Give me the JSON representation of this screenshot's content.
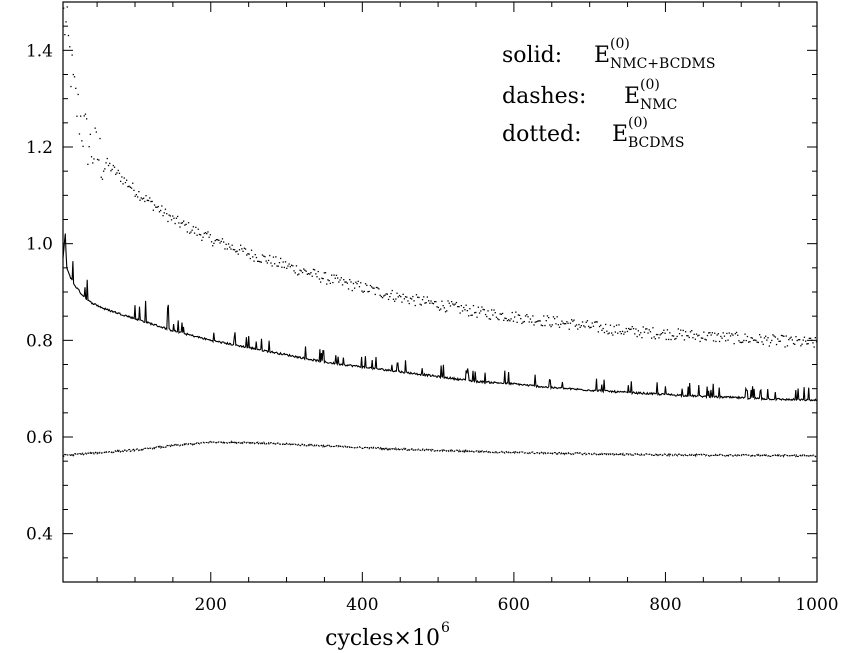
{
  "chart_data": {
    "type": "line",
    "title": "",
    "xlabel": "cycles×10",
    "xlabel_exp": "6",
    "ylabel": "",
    "xlim": [
      5,
      1000
    ],
    "ylim": [
      0.3,
      1.5
    ],
    "x_ticks": [
      200,
      400,
      600,
      800,
      1000
    ],
    "y_ticks": [
      0.4,
      0.6,
      0.8,
      1.0,
      1.2,
      1.4
    ],
    "x_tick_labels": [
      "200",
      "400",
      "600",
      "800",
      "1000"
    ],
    "y_tick_labels": [
      "0.4",
      "0.6",
      "0.8",
      "1.0",
      "1.2",
      "1.4"
    ],
    "grid": false,
    "legend_position": "top-right",
    "legend": [
      {
        "label": "solid:",
        "symbol": "E",
        "sup": "(0)",
        "sub": "NMC+BCDMS"
      },
      {
        "label": "dashes:",
        "symbol": "E",
        "sup": "(0)",
        "sub": "NMC"
      },
      {
        "label": "dotted:",
        "symbol": "E",
        "sup": "(0)",
        "sub": "BCDMS"
      }
    ],
    "series": [
      {
        "style": "dotted",
        "x": [
          5,
          10,
          15,
          20,
          30,
          40,
          60,
          80,
          100,
          150,
          200,
          250,
          300,
          350,
          400,
          450,
          500,
          550,
          600,
          650,
          700,
          750,
          800,
          850,
          900,
          950,
          1000
        ],
        "y": [
          1.47,
          1.43,
          1.36,
          1.3,
          1.24,
          1.2,
          1.17,
          1.14,
          1.11,
          1.05,
          1.01,
          0.98,
          0.955,
          0.93,
          0.91,
          0.89,
          0.875,
          0.86,
          0.85,
          0.84,
          0.83,
          0.82,
          0.815,
          0.81,
          0.805,
          0.8,
          0.795
        ]
      },
      {
        "style": "solid",
        "x": [
          5,
          8,
          10,
          15,
          20,
          30,
          40,
          60,
          80,
          100,
          150,
          200,
          250,
          300,
          350,
          400,
          450,
          500,
          550,
          600,
          650,
          700,
          750,
          800,
          850,
          900,
          950,
          1000
        ],
        "y": [
          0.97,
          1.02,
          0.95,
          0.93,
          0.915,
          0.895,
          0.88,
          0.865,
          0.855,
          0.845,
          0.82,
          0.8,
          0.785,
          0.77,
          0.755,
          0.745,
          0.735,
          0.725,
          0.715,
          0.71,
          0.702,
          0.697,
          0.692,
          0.688,
          0.684,
          0.681,
          0.678,
          0.676
        ]
      },
      {
        "style": "dashed",
        "x": [
          5,
          50,
          100,
          150,
          200,
          250,
          300,
          400,
          500,
          600,
          700,
          800,
          900,
          1000
        ],
        "y": [
          0.562,
          0.567,
          0.573,
          0.582,
          0.589,
          0.589,
          0.585,
          0.578,
          0.572,
          0.568,
          0.565,
          0.563,
          0.562,
          0.561
        ]
      }
    ]
  }
}
